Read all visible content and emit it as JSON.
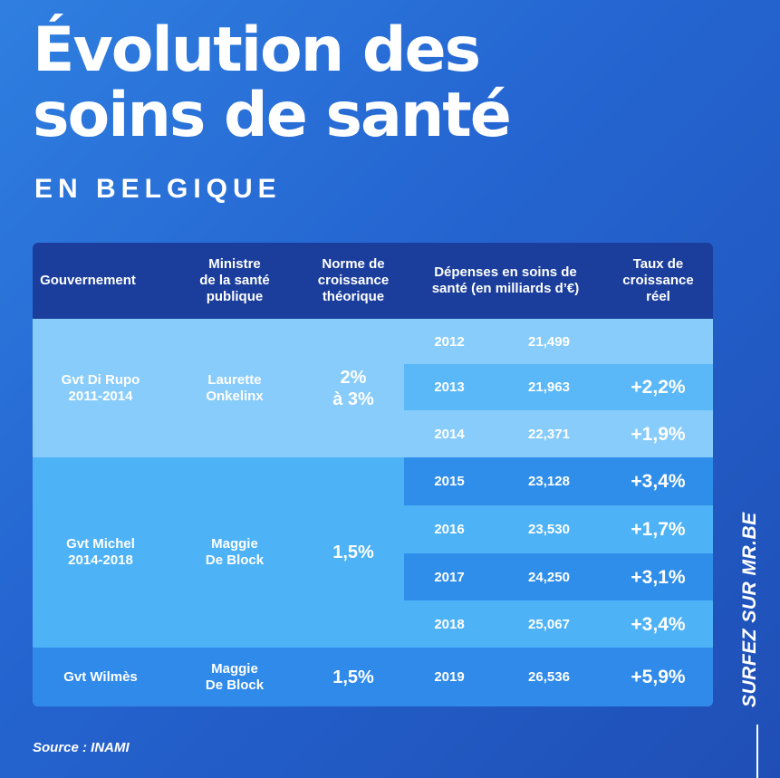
{
  "title_line1": "Évolution des",
  "title_line2": "soins de santé",
  "subtitle": "EN BELGIQUE",
  "source": "Source : INAMI",
  "side_text": "SURFEZ SUR MR.BE",
  "colors": {
    "background": "#2566d2",
    "header": "#1b3e9c",
    "rupo_band": "#88ccfb",
    "michel_band": "#4eb2f7",
    "wilmes_band": "#2f8aea"
  },
  "chart_data": {
    "type": "table",
    "title": "Évolution des soins de santé",
    "subtitle": "EN BELGIQUE",
    "columns": [
      "Gouvernement",
      "Ministre\nde la santé\npublique",
      "Norme de\ncroissance\nthéorique",
      "Dépenses en soins de\nsanté (en milliards d’€)",
      "Taux de\ncroissance\nréel"
    ],
    "groups": [
      {
        "gouvernement": "Gvt Di Rupo\n2011-2014",
        "ministre": "Laurette\nOnkelinx",
        "norme": "2%\nà 3%"
      },
      {
        "gouvernement": "Gvt Michel\n2014-2018",
        "ministre": "Maggie\nDe Block",
        "norme": "1,5%"
      },
      {
        "gouvernement": "Gvt Wilmès",
        "ministre": "Maggie\nDe Block",
        "norme": "1,5%"
      }
    ],
    "rows": [
      {
        "year": "2012",
        "depenses": "21,499",
        "taux": ""
      },
      {
        "year": "2013",
        "depenses": "21,963",
        "taux": "+2,2%"
      },
      {
        "year": "2014",
        "depenses": "22,371",
        "taux": "+1,9%"
      },
      {
        "year": "2015",
        "depenses": "23,128",
        "taux": "+3,4%"
      },
      {
        "year": "2016",
        "depenses": "23,530",
        "taux": "+1,7%"
      },
      {
        "year": "2017",
        "depenses": "24,250",
        "taux": "+3,1%"
      },
      {
        "year": "2018",
        "depenses": "25,067",
        "taux": "+3,4%"
      },
      {
        "year": "2019",
        "depenses": "26,536",
        "taux": "+5,9%"
      }
    ]
  }
}
